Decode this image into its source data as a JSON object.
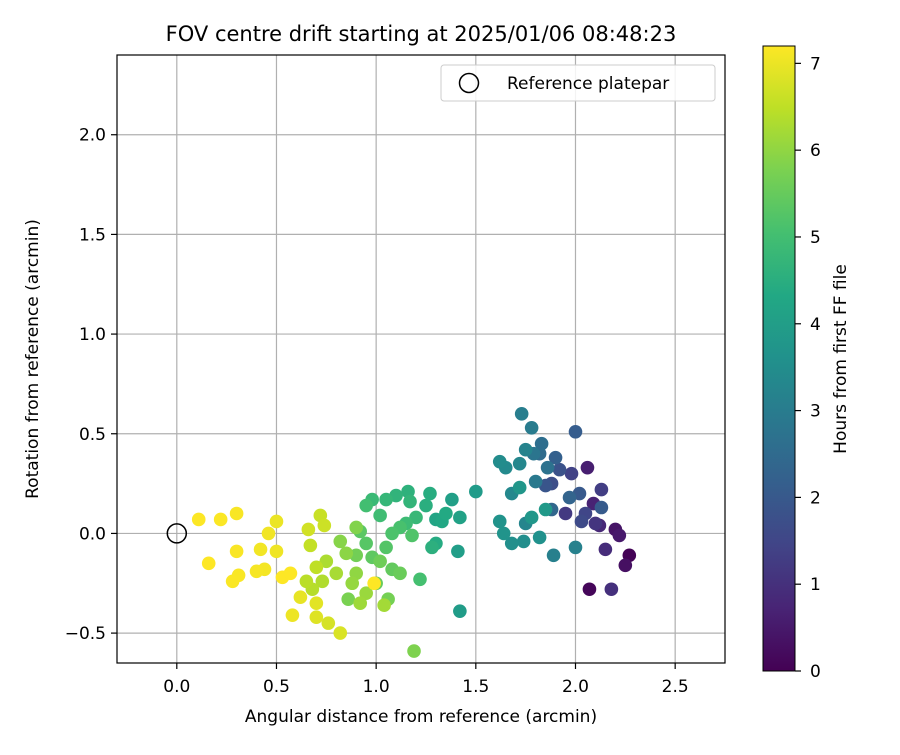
{
  "chart_data": {
    "type": "scatter",
    "title": "FOV centre drift starting at 2025/01/06 08:48:23",
    "xlabel": "Angular distance from reference (arcmin)",
    "ylabel": "Rotation from reference (arcmin)",
    "xlim": [
      -0.3,
      2.75
    ],
    "ylim": [
      -0.65,
      2.4
    ],
    "xticks": [
      0.0,
      0.5,
      1.0,
      1.5,
      2.0,
      2.5
    ],
    "xtick_labels": [
      "0.0",
      "0.5",
      "1.0",
      "1.5",
      "2.0",
      "2.5"
    ],
    "yticks": [
      -0.5,
      0.0,
      0.5,
      1.0,
      1.5,
      2.0
    ],
    "ytick_labels": [
      "−0.5",
      "0.0",
      "0.5",
      "1.0",
      "1.5",
      "2.0"
    ],
    "grid": true,
    "legend": {
      "placement": "top-right",
      "entries": [
        {
          "label": "Reference platepar",
          "marker": "open-circle"
        }
      ]
    },
    "reference_point": {
      "x": 0.0,
      "y": 0.0
    },
    "colorbar": {
      "label": "Hours from first FF file",
      "colormap": "viridis",
      "range": [
        0,
        7.2
      ],
      "ticks": [
        0,
        1,
        2,
        3,
        4,
        5,
        6,
        7
      ],
      "tick_labels": [
        "0",
        "1",
        "2",
        "3",
        "4",
        "5",
        "6",
        "7"
      ]
    },
    "points": [
      [
        2.27,
        -0.11,
        0.05
      ],
      [
        2.07,
        -0.28,
        0.1
      ],
      [
        2.25,
        -0.16,
        0.3
      ],
      [
        2.2,
        0.02,
        0.4
      ],
      [
        2.22,
        -0.01,
        0.5
      ],
      [
        2.06,
        0.33,
        0.6
      ],
      [
        2.09,
        0.15,
        0.7
      ],
      [
        2.12,
        0.04,
        0.8
      ],
      [
        2.15,
        -0.08,
        0.9
      ],
      [
        2.18,
        -0.28,
        1.0
      ],
      [
        2.1,
        0.05,
        1.1
      ],
      [
        1.95,
        0.1,
        1.2
      ],
      [
        2.13,
        0.22,
        1.3
      ],
      [
        1.98,
        0.3,
        1.4
      ],
      [
        2.05,
        0.1,
        1.5
      ],
      [
        2.03,
        0.06,
        1.6
      ],
      [
        1.88,
        0.25,
        1.7
      ],
      [
        1.92,
        0.32,
        1.8
      ],
      [
        1.85,
        0.24,
        1.9
      ],
      [
        2.02,
        0.2,
        2.0
      ],
      [
        2.13,
        0.13,
        2.05
      ],
      [
        2.0,
        0.51,
        2.1
      ],
      [
        1.9,
        0.38,
        2.2
      ],
      [
        1.97,
        0.18,
        2.3
      ],
      [
        1.88,
        0.12,
        2.4
      ],
      [
        1.82,
        0.4,
        2.5
      ],
      [
        1.83,
        0.45,
        2.6
      ],
      [
        1.86,
        0.33,
        2.7
      ],
      [
        1.79,
        0.4,
        2.8
      ],
      [
        1.8,
        0.26,
        2.9
      ],
      [
        1.78,
        0.53,
        3.0
      ],
      [
        1.73,
        0.6,
        3.05
      ],
      [
        1.89,
        -0.11,
        3.1
      ],
      [
        2.0,
        -0.07,
        3.15
      ],
      [
        1.75,
        0.42,
        3.2
      ],
      [
        1.75,
        0.05,
        3.25
      ],
      [
        1.72,
        0.35,
        3.3
      ],
      [
        1.68,
        0.2,
        3.35
      ],
      [
        1.65,
        0.33,
        3.4
      ],
      [
        1.62,
        0.36,
        3.45
      ],
      [
        1.74,
        -0.04,
        3.5
      ],
      [
        1.68,
        -0.05,
        3.55
      ],
      [
        1.82,
        -0.02,
        3.6
      ],
      [
        1.62,
        0.06,
        3.65
      ],
      [
        1.64,
        0.0,
        3.7
      ],
      [
        1.72,
        0.23,
        3.75
      ],
      [
        1.78,
        0.08,
        3.8
      ],
      [
        1.85,
        0.12,
        3.85
      ],
      [
        1.5,
        0.21,
        3.9
      ],
      [
        1.42,
        -0.39,
        3.95
      ],
      [
        1.41,
        -0.09,
        4.0
      ],
      [
        1.38,
        0.17,
        4.05
      ],
      [
        1.42,
        0.08,
        4.1
      ],
      [
        1.3,
        0.07,
        4.2
      ],
      [
        1.33,
        0.06,
        4.3
      ],
      [
        1.35,
        0.1,
        4.35
      ],
      [
        1.3,
        -0.05,
        4.4
      ],
      [
        1.27,
        0.2,
        4.45
      ],
      [
        1.25,
        0.14,
        4.5
      ],
      [
        1.28,
        -0.07,
        4.55
      ],
      [
        1.16,
        0.21,
        4.6
      ],
      [
        1.1,
        0.19,
        4.65
      ],
      [
        1.17,
        0.16,
        4.7
      ],
      [
        1.05,
        0.17,
        4.75
      ],
      [
        1.2,
        0.08,
        4.8
      ],
      [
        0.98,
        0.17,
        4.85
      ],
      [
        1.15,
        0.05,
        4.9
      ],
      [
        1.02,
        0.09,
        4.95
      ],
      [
        0.95,
        0.14,
        5.0
      ],
      [
        1.22,
        -0.23,
        5.05
      ],
      [
        1.12,
        0.03,
        5.1
      ],
      [
        1.08,
        0.0,
        5.15
      ],
      [
        1.18,
        -0.01,
        5.2
      ],
      [
        1.05,
        -0.07,
        5.25
      ],
      [
        0.95,
        -0.05,
        5.3
      ],
      [
        0.92,
        0.01,
        5.35
      ],
      [
        0.98,
        -0.12,
        5.4
      ],
      [
        1.08,
        -0.18,
        5.45
      ],
      [
        1.0,
        -0.25,
        5.5
      ],
      [
        1.12,
        -0.2,
        5.55
      ],
      [
        1.02,
        -0.14,
        5.6
      ],
      [
        0.9,
        -0.11,
        5.65
      ],
      [
        1.06,
        -0.33,
        5.7
      ],
      [
        0.86,
        -0.33,
        5.75
      ],
      [
        1.19,
        -0.59,
        5.8
      ],
      [
        0.9,
        0.03,
        5.85
      ],
      [
        0.82,
        -0.04,
        5.9
      ],
      [
        0.85,
        -0.1,
        5.95
      ],
      [
        0.9,
        -0.2,
        6.0
      ],
      [
        0.88,
        -0.25,
        6.05
      ],
      [
        0.95,
        -0.3,
        6.1
      ],
      [
        0.92,
        -0.35,
        6.15
      ],
      [
        1.04,
        -0.36,
        6.2
      ],
      [
        0.8,
        -0.2,
        6.25
      ],
      [
        0.75,
        -0.14,
        6.3
      ],
      [
        0.73,
        -0.24,
        6.35
      ],
      [
        0.68,
        -0.28,
        6.4
      ],
      [
        0.65,
        -0.24,
        6.45
      ],
      [
        0.7,
        -0.17,
        6.5
      ],
      [
        0.67,
        -0.06,
        6.55
      ],
      [
        0.72,
        0.09,
        6.6
      ],
      [
        0.74,
        0.04,
        6.65
      ],
      [
        0.66,
        0.02,
        6.7
      ],
      [
        0.76,
        -0.45,
        6.75
      ],
      [
        0.82,
        -0.5,
        6.8
      ],
      [
        0.7,
        -0.42,
        6.85
      ],
      [
        0.7,
        -0.35,
        6.9
      ],
      [
        0.62,
        -0.32,
        6.95
      ],
      [
        0.5,
        0.06,
        7.0
      ],
      [
        0.58,
        -0.41,
        7.02
      ],
      [
        0.5,
        -0.09,
        7.04
      ],
      [
        0.46,
        0.0,
        7.06
      ],
      [
        0.42,
        -0.08,
        7.08
      ],
      [
        0.44,
        -0.18,
        7.1
      ],
      [
        0.4,
        -0.19,
        7.12
      ],
      [
        0.3,
        0.1,
        7.14
      ],
      [
        0.3,
        -0.09,
        7.15
      ],
      [
        0.31,
        -0.21,
        7.16
      ],
      [
        0.28,
        -0.24,
        7.17
      ],
      [
        0.22,
        0.07,
        7.18
      ],
      [
        0.11,
        0.07,
        7.19
      ],
      [
        0.16,
        -0.15,
        7.2
      ],
      [
        0.53,
        -0.22,
        7.2
      ],
      [
        0.57,
        -0.2,
        7.2
      ],
      [
        0.99,
        -0.25,
        7.2
      ]
    ]
  }
}
